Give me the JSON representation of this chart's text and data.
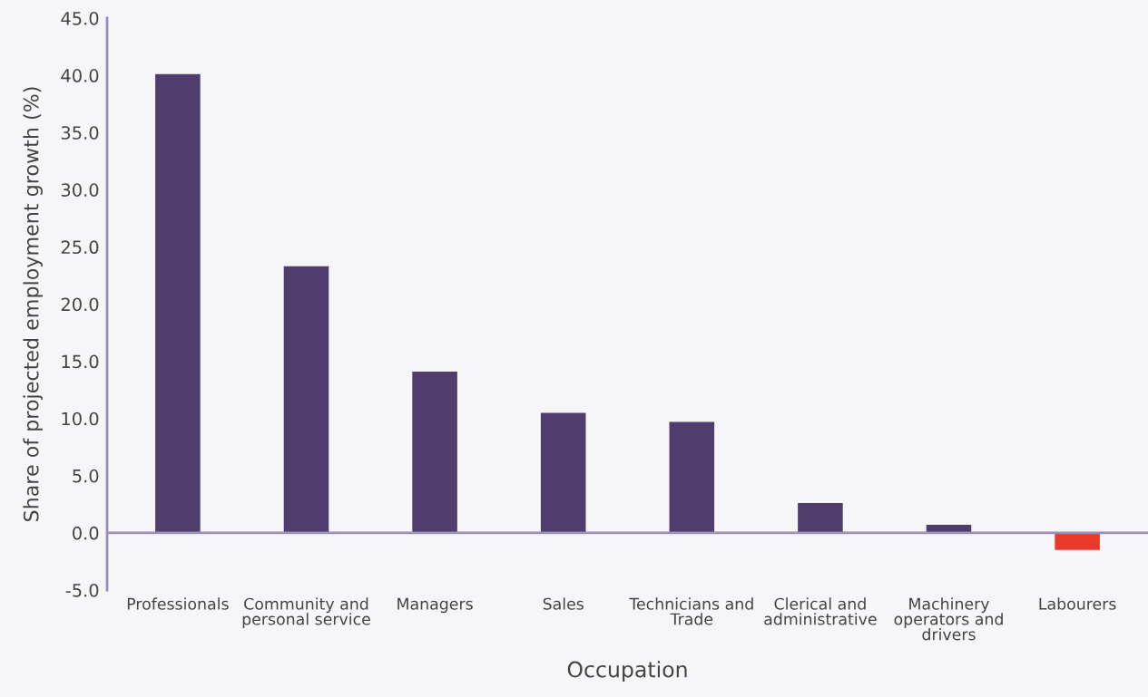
{
  "chart_data": {
    "type": "bar",
    "xlabel": "Occupation",
    "ylabel": "Share of projected employment growth (%)",
    "categories": [
      "Professionals",
      "Community and\npersonal service",
      "Managers",
      "Sales",
      "Technicians and\nTrade",
      "Clerical and\nadministrative",
      "Machinery\noperators and\ndrivers",
      "Labourers"
    ],
    "values": [
      40.1,
      23.3,
      14.1,
      10.5,
      9.7,
      2.6,
      0.7,
      -1.5
    ],
    "colors": [
      "#4f3d6e",
      "#4f3d6e",
      "#4f3d6e",
      "#4f3d6e",
      "#4f3d6e",
      "#4f3d6e",
      "#4f3d6e",
      "#e8392a"
    ],
    "ylim": [
      -5,
      45
    ],
    "yticks": [
      {
        "value": -5,
        "label": "-5.0"
      },
      {
        "value": 0,
        "label": "0.0"
      },
      {
        "value": 5,
        "label": "5.0"
      },
      {
        "value": 10,
        "label": "10.0"
      },
      {
        "value": 15,
        "label": "15.0"
      },
      {
        "value": 20,
        "label": "20.0"
      },
      {
        "value": 25,
        "label": "25.0"
      },
      {
        "value": 30,
        "label": "30.0"
      },
      {
        "value": 35,
        "label": "35.0"
      },
      {
        "value": 40,
        "label": "40.0"
      },
      {
        "value": 45,
        "label": "45.0"
      }
    ],
    "ref_lines": [
      {
        "axis": "y",
        "value": 0,
        "color": "#9a8fb0"
      }
    ],
    "grid": false,
    "legend": false
  }
}
